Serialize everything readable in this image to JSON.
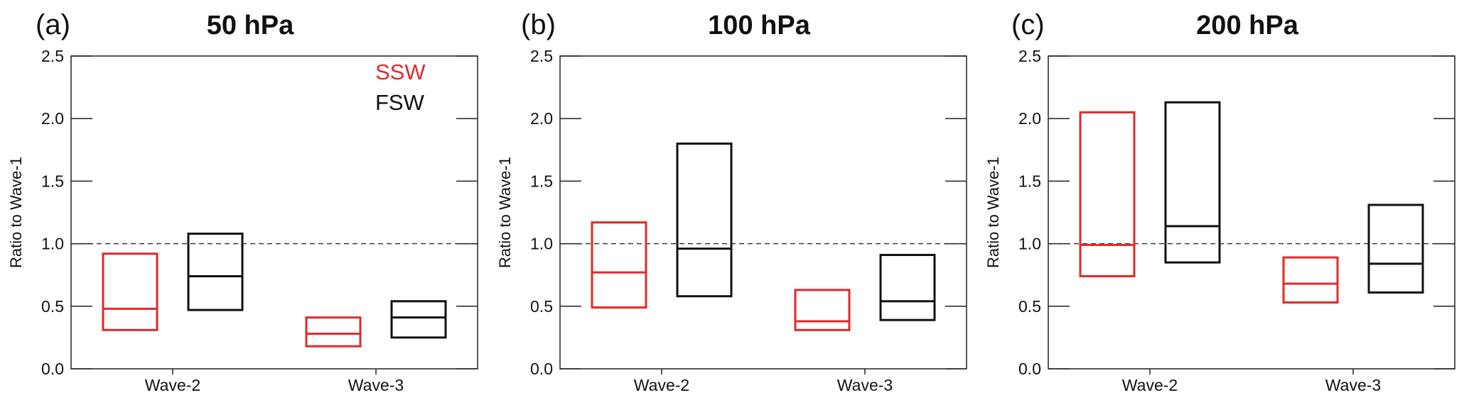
{
  "colors": {
    "SSW": "#e02a28",
    "FSW": "#111111"
  },
  "legend": {
    "ssw": "SSW",
    "fsw": "FSW"
  },
  "chart_data": [
    {
      "type": "box",
      "panel": "(a)",
      "title": "50 hPa",
      "ylabel": "Ratio to Wave-1",
      "ylim": [
        0,
        2.5
      ],
      "yticks": [
        "0.0",
        "0.5",
        "1.0",
        "1.5",
        "2.0",
        "2.5"
      ],
      "reference_line": 1.0,
      "categories": [
        "Wave-2",
        "Wave-3"
      ],
      "series": [
        {
          "name": "SSW",
          "boxes": [
            {
              "low": 0.31,
              "median": 0.48,
              "high": 0.92
            },
            {
              "low": 0.18,
              "median": 0.28,
              "high": 0.41
            }
          ]
        },
        {
          "name": "FSW",
          "boxes": [
            {
              "low": 0.47,
              "median": 0.74,
              "high": 1.08
            },
            {
              "low": 0.25,
              "median": 0.41,
              "high": 0.54
            }
          ]
        }
      ]
    },
    {
      "type": "box",
      "panel": "(b)",
      "title": "100 hPa",
      "ylabel": "Ratio to Wave-1",
      "ylim": [
        0,
        2.5
      ],
      "yticks": [
        "0.0",
        "0.5",
        "1.0",
        "1.5",
        "2.0",
        "2.5"
      ],
      "reference_line": 1.0,
      "categories": [
        "Wave-2",
        "Wave-3"
      ],
      "series": [
        {
          "name": "SSW",
          "boxes": [
            {
              "low": 0.49,
              "median": 0.77,
              "high": 1.17
            },
            {
              "low": 0.31,
              "median": 0.38,
              "high": 0.63
            }
          ]
        },
        {
          "name": "FSW",
          "boxes": [
            {
              "low": 0.58,
              "median": 0.96,
              "high": 1.8
            },
            {
              "low": 0.39,
              "median": 0.54,
              "high": 0.91
            }
          ]
        }
      ]
    },
    {
      "type": "box",
      "panel": "(c)",
      "title": "200 hPa",
      "ylabel": "Ratio to Wave-1",
      "ylim": [
        0,
        2.5
      ],
      "yticks": [
        "0.0",
        "0.5",
        "1.0",
        "1.5",
        "2.0",
        "2.5"
      ],
      "reference_line": 1.0,
      "categories": [
        "Wave-2",
        "Wave-3"
      ],
      "series": [
        {
          "name": "SSW",
          "boxes": [
            {
              "low": 0.74,
              "median": 0.99,
              "high": 2.05
            },
            {
              "low": 0.53,
              "median": 0.68,
              "high": 0.89
            }
          ]
        },
        {
          "name": "FSW",
          "boxes": [
            {
              "low": 0.85,
              "median": 1.14,
              "high": 2.13
            },
            {
              "low": 0.61,
              "median": 0.84,
              "high": 1.31
            }
          ]
        }
      ]
    }
  ]
}
